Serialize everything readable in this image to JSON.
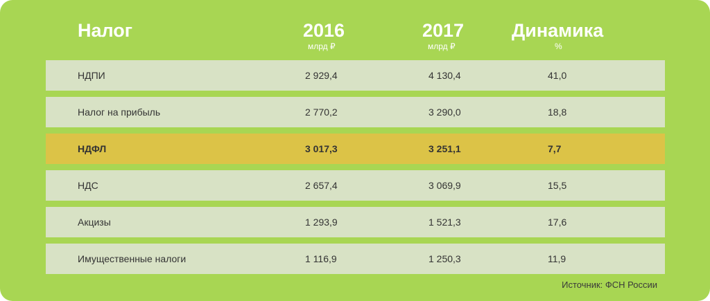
{
  "chart_data": {
    "type": "table",
    "columns": [
      {
        "title": "Налог",
        "unit": ""
      },
      {
        "title": "2016",
        "unit": "млрд ₽"
      },
      {
        "title": "2017",
        "unit": "млрд ₽"
      },
      {
        "title": "Динамика",
        "unit": "%"
      }
    ],
    "rows": [
      {
        "tax": "НДПИ",
        "v2016": "2 929,4",
        "v2017": "4 130,4",
        "change": "41,0",
        "highlight": false
      },
      {
        "tax": "Налог на прибыль",
        "v2016": "2 770,2",
        "v2017": "3 290,0",
        "change": "18,8",
        "highlight": false
      },
      {
        "tax": "НДФЛ",
        "v2016": "3 017,3",
        "v2017": "3 251,1",
        "change": "7,7",
        "highlight": true
      },
      {
        "tax": "НДС",
        "v2016": "2 657,4",
        "v2017": "3 069,9",
        "change": "15,5",
        "highlight": false
      },
      {
        "tax": "Акцизы",
        "v2016": "1 293,9",
        "v2017": "1 521,3",
        "change": "17,6",
        "highlight": false
      },
      {
        "tax": "Имущественные налоги",
        "v2016": "1 116,9",
        "v2017": "1 250,3",
        "change": "11,9",
        "highlight": false
      }
    ],
    "source": "Источник: ФСН России"
  },
  "colors": {
    "background": "#a8d653",
    "row": "#d8e2c5",
    "highlight_row": "#dcc347",
    "header_text": "#ffffff",
    "body_text": "#333333"
  }
}
